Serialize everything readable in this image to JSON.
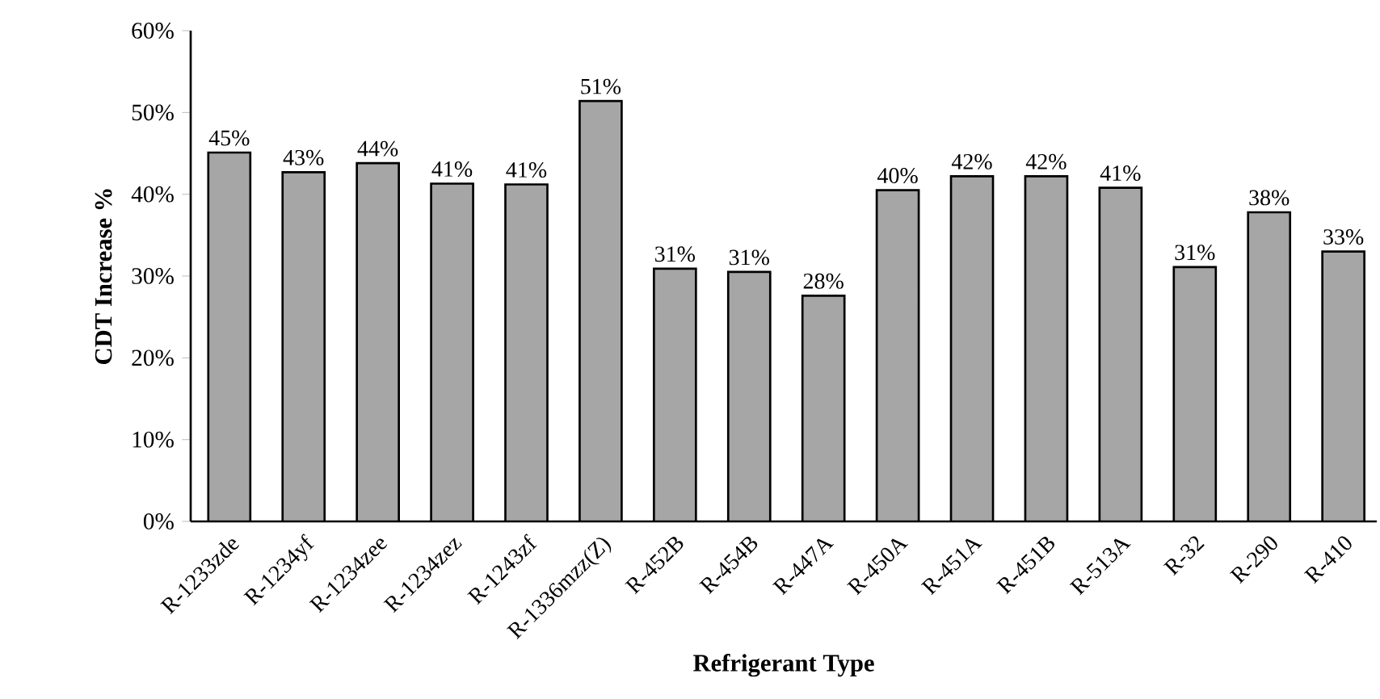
{
  "chart_data": {
    "type": "bar",
    "xlabel": "Refrigerant Type",
    "ylabel": "CDT Increase %",
    "categories": [
      "R-1233zde",
      "R-1234yf",
      "R-1234zee",
      "R-1234zez",
      "R-1243zf",
      "R-1336mzz(Z)",
      "R-452B",
      "R-454B",
      "R-447A",
      "R-450A",
      "R-451A",
      "R-451B",
      "R-513A",
      "R-32",
      "R-290",
      "R-410"
    ],
    "values": [
      45.1,
      42.7,
      43.8,
      41.3,
      41.2,
      51.4,
      30.9,
      30.5,
      27.6,
      40.5,
      42.2,
      42.2,
      40.8,
      31.1,
      37.8,
      33.0
    ],
    "value_labels": [
      "45%",
      "43%",
      "44%",
      "41%",
      "41%",
      "51%",
      "31%",
      "31%",
      "28%",
      "40%",
      "42%",
      "42%",
      "41%",
      "31%",
      "38%",
      "33%"
    ],
    "color": "#a6a6a6",
    "ylim": [
      0,
      60
    ],
    "yticks": [
      {
        "value": 0,
        "label": "0%"
      },
      {
        "value": 10,
        "label": "10%"
      },
      {
        "value": 20,
        "label": "20%"
      },
      {
        "value": 30,
        "label": "30%"
      },
      {
        "value": 40,
        "label": "40%"
      },
      {
        "value": 50,
        "label": "50%"
      },
      {
        "value": 60,
        "label": "60%"
      }
    ]
  }
}
